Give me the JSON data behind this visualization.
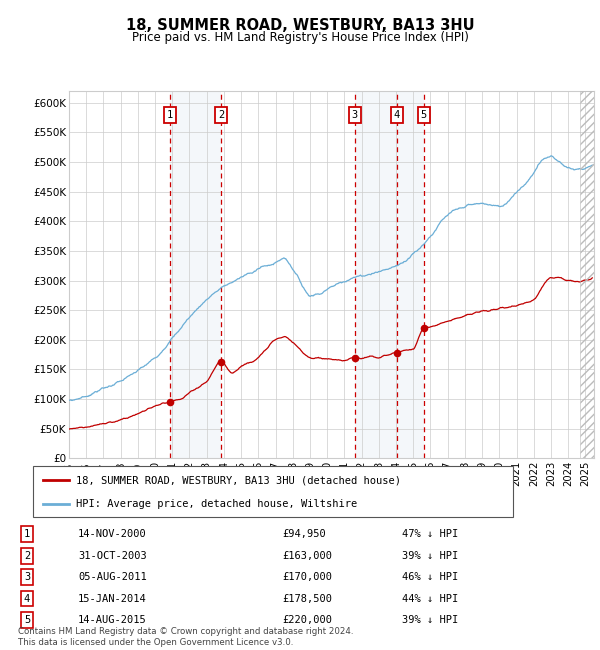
{
  "title": "18, SUMMER ROAD, WESTBURY, BA13 3HU",
  "subtitle": "Price paid vs. HM Land Registry's House Price Index (HPI)",
  "footnote": "Contains HM Land Registry data © Crown copyright and database right 2024.\nThis data is licensed under the Open Government Licence v3.0.",
  "legend_line1": "18, SUMMER ROAD, WESTBURY, BA13 3HU (detached house)",
  "legend_line2": "HPI: Average price, detached house, Wiltshire",
  "transactions": [
    {
      "num": 1,
      "date": "14-NOV-2000",
      "price": 94950,
      "pct": "47% ↓ HPI",
      "year": 2000.87
    },
    {
      "num": 2,
      "date": "31-OCT-2003",
      "price": 163000,
      "pct": "39% ↓ HPI",
      "year": 2003.83
    },
    {
      "num": 3,
      "date": "05-AUG-2011",
      "price": 170000,
      "pct": "46% ↓ HPI",
      "year": 2011.59
    },
    {
      "num": 4,
      "date": "15-JAN-2014",
      "price": 178500,
      "pct": "44% ↓ HPI",
      "year": 2014.04
    },
    {
      "num": 5,
      "date": "14-AUG-2015",
      "price": 220000,
      "pct": "39% ↓ HPI",
      "year": 2015.62
    }
  ],
  "hpi_color": "#6baed6",
  "price_color": "#c00000",
  "shade_color": "#dce6f1",
  "dashed_color": "#cc0000",
  "ylim": [
    0,
    620000
  ],
  "xlim_start": 1995.0,
  "xlim_end": 2025.5,
  "yticks": [
    0,
    50000,
    100000,
    150000,
    200000,
    250000,
    300000,
    350000,
    400000,
    450000,
    500000,
    550000,
    600000
  ],
  "ytick_labels": [
    "£0",
    "£50K",
    "£100K",
    "£150K",
    "£200K",
    "£250K",
    "£300K",
    "£350K",
    "£400K",
    "£450K",
    "£500K",
    "£550K",
    "£600K"
  ],
  "xticks": [
    1995,
    1996,
    1997,
    1998,
    1999,
    2000,
    2001,
    2002,
    2003,
    2004,
    2005,
    2006,
    2007,
    2008,
    2009,
    2010,
    2011,
    2012,
    2013,
    2014,
    2015,
    2016,
    2017,
    2018,
    2019,
    2020,
    2021,
    2022,
    2023,
    2024,
    2025
  ],
  "hpi_knots_x": [
    1995.0,
    1996.0,
    1997.0,
    1998.0,
    1999.0,
    2000.0,
    2001.0,
    2002.0,
    2003.0,
    2004.0,
    2005.0,
    2006.0,
    2007.0,
    2007.5,
    2008.0,
    2008.5,
    2009.0,
    2009.5,
    2010.0,
    2011.0,
    2012.0,
    2013.0,
    2014.0,
    2015.0,
    2016.0,
    2017.0,
    2018.0,
    2019.0,
    2020.0,
    2021.0,
    2022.0,
    2022.5,
    2023.0,
    2023.5,
    2024.0,
    2024.5,
    2025.0
  ],
  "hpi_knots_y": [
    97000,
    105000,
    118000,
    130000,
    148000,
    170000,
    202000,
    238000,
    268000,
    290000,
    305000,
    320000,
    330000,
    338000,
    320000,
    295000,
    275000,
    278000,
    285000,
    300000,
    308000,
    315000,
    325000,
    345000,
    375000,
    410000,
    425000,
    430000,
    425000,
    450000,
    480000,
    505000,
    510000,
    500000,
    490000,
    488000,
    490000
  ],
  "price_knots_x": [
    1995.0,
    1996.0,
    1997.0,
    1998.0,
    1999.0,
    2000.0,
    2000.87,
    2001.5,
    2002.0,
    2003.0,
    2003.83,
    2004.5,
    2005.0,
    2006.0,
    2007.0,
    2007.5,
    2008.0,
    2008.5,
    2009.0,
    2010.0,
    2011.0,
    2011.59,
    2012.0,
    2012.5,
    2013.0,
    2013.5,
    2014.04,
    2014.5,
    2015.0,
    2015.62,
    2016.0,
    2017.0,
    2018.0,
    2019.0,
    2020.0,
    2021.0,
    2022.0,
    2022.5,
    2023.0,
    2023.5,
    2024.0,
    2024.5,
    2025.0
  ],
  "price_knots_y": [
    50000,
    53000,
    58000,
    65000,
    75000,
    88000,
    94950,
    100000,
    110000,
    130000,
    163000,
    145000,
    155000,
    170000,
    200000,
    205000,
    195000,
    182000,
    170000,
    168000,
    165000,
    170000,
    168000,
    172000,
    170000,
    175000,
    178500,
    182000,
    185000,
    220000,
    222000,
    232000,
    240000,
    248000,
    252000,
    258000,
    268000,
    290000,
    305000,
    305000,
    300000,
    298000,
    300000
  ]
}
